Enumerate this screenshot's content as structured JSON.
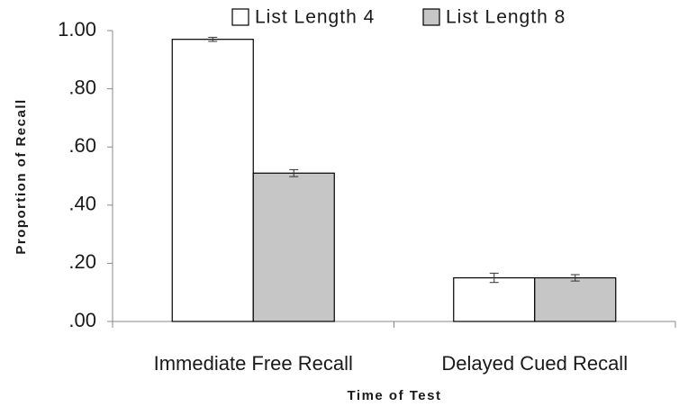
{
  "chart_data": {
    "type": "bar",
    "categories": [
      "Immediate Free Recall",
      "Delayed Cued Recall"
    ],
    "series": [
      {
        "name": "List Length 4",
        "color": "#ffffff",
        "values": [
          0.97,
          0.15
        ],
        "errors": [
          0.007,
          0.016
        ]
      },
      {
        "name": "List Length 8",
        "color": "#c6c6c6",
        "values": [
          0.51,
          0.15
        ],
        "errors": [
          0.012,
          0.011
        ]
      }
    ],
    "ylabel": "Proportion of Recall",
    "xlabel": "Time of Test",
    "ylim": [
      0,
      1
    ],
    "yticks": [
      {
        "value": 0,
        "label": ".00"
      },
      {
        "value": 0.2,
        "label": ".20"
      },
      {
        "value": 0.4,
        "label": ".40"
      },
      {
        "value": 0.6,
        "label": ".60"
      },
      {
        "value": 0.8,
        "label": ".80"
      },
      {
        "value": 1,
        "label": "1.00"
      }
    ],
    "legend": "top"
  }
}
